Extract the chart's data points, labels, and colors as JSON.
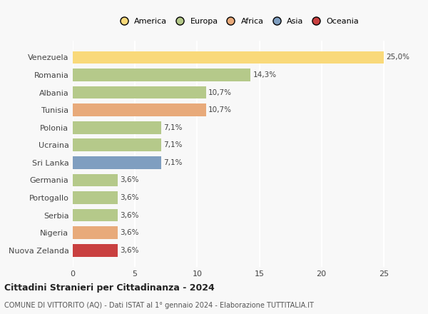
{
  "categories": [
    "Venezuela",
    "Romania",
    "Albania",
    "Tunisia",
    "Polonia",
    "Ucraina",
    "Sri Lanka",
    "Germania",
    "Portogallo",
    "Serbia",
    "Nigeria",
    "Nuova Zelanda"
  ],
  "values": [
    25.0,
    14.3,
    10.7,
    10.7,
    7.1,
    7.1,
    7.1,
    3.6,
    3.6,
    3.6,
    3.6,
    3.6
  ],
  "labels": [
    "25,0%",
    "14,3%",
    "10,7%",
    "10,7%",
    "7,1%",
    "7,1%",
    "7,1%",
    "3,6%",
    "3,6%",
    "3,6%",
    "3,6%",
    "3,6%"
  ],
  "colors": [
    "#f9d97a",
    "#b5c98a",
    "#b5c98a",
    "#e8aa7a",
    "#b5c98a",
    "#b5c98a",
    "#7f9ec0",
    "#b5c98a",
    "#b5c98a",
    "#b5c98a",
    "#e8aa7a",
    "#c94040"
  ],
  "legend_labels": [
    "America",
    "Europa",
    "Africa",
    "Asia",
    "Oceania"
  ],
  "legend_colors": [
    "#f9d97a",
    "#b5c98a",
    "#e8aa7a",
    "#7f9ec0",
    "#c94040"
  ],
  "xlim": [
    0,
    26.5
  ],
  "xticks": [
    0,
    5,
    10,
    15,
    20,
    25
  ],
  "title": "Cittadini Stranieri per Cittadinanza - 2024",
  "subtitle": "COMUNE DI VITTORITO (AQ) - Dati ISTAT al 1° gennaio 2024 - Elaborazione TUTTITALIA.IT",
  "bg_color": "#f8f8f8",
  "grid_color": "#ffffff",
  "bar_height": 0.72
}
